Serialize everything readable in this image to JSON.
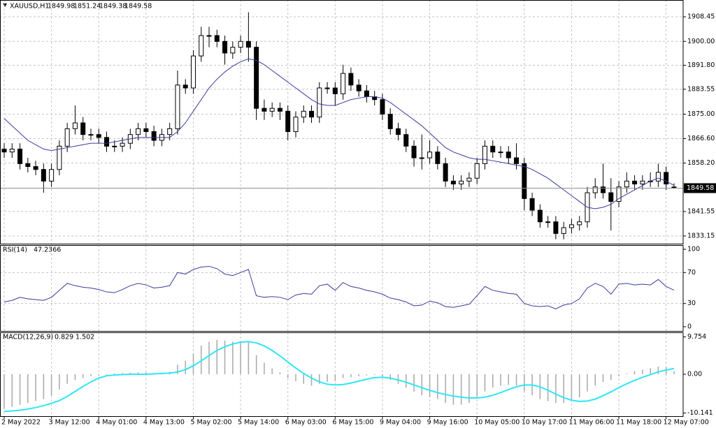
{
  "chart_data": [
    {
      "type": "candlestick",
      "title": "XAUUSD,H1",
      "open": [
        1863,
        1862,
        1863,
        1858,
        1857,
        1856,
        1852,
        1856,
        1864,
        1870,
        1872,
        1868,
        1868,
        1867,
        1864,
        1864,
        1865,
        1868,
        1870,
        1869,
        1866,
        1868,
        1870,
        1885,
        1884,
        1895,
        1902,
        1902,
        1900,
        1896,
        1898,
        1900,
        1898,
        1877,
        1876,
        1877,
        1876,
        1869,
        1874,
        1876,
        1874,
        1884,
        1884,
        1882,
        1889,
        1885,
        1883,
        1881,
        1880,
        1875,
        1870,
        1868,
        1864,
        1860,
        1860,
        1862,
        1858,
        1852,
        1851,
        1852,
        1853,
        1858,
        1864,
        1862,
        1862,
        1860,
        1858,
        1846,
        1842,
        1838,
        1838,
        1834,
        1836,
        1837,
        1838,
        1848,
        1850,
        1848,
        1845,
        1850,
        1852,
        1851,
        1852,
        1852,
        1855,
        1849.98
      ],
      "high": [
        1865,
        1865,
        1865,
        1860,
        1859,
        1858,
        1858,
        1866,
        1872,
        1878,
        1874,
        1870,
        1870,
        1869,
        1866,
        1867,
        1870,
        1872,
        1872,
        1871,
        1870,
        1872,
        1890,
        1887,
        1897,
        1905,
        1905,
        1904,
        1902,
        1900,
        1902,
        1910,
        1900,
        1880,
        1879,
        1879,
        1878,
        1876,
        1878,
        1878,
        1886,
        1886,
        1886,
        1892,
        1891,
        1887,
        1885,
        1883,
        1882,
        1877,
        1872,
        1870,
        1866,
        1868,
        1866,
        1864,
        1860,
        1854,
        1854,
        1855,
        1860,
        1866,
        1866,
        1864,
        1864,
        1865,
        1860,
        1848,
        1844,
        1840,
        1840,
        1838,
        1839,
        1840,
        1850,
        1853,
        1858,
        1853,
        1852,
        1855,
        1854,
        1854,
        1855,
        1858,
        1857,
        1851.24
      ],
      "low": [
        1860,
        1860,
        1856,
        1855,
        1854,
        1848,
        1850,
        1854,
        1862,
        1868,
        1866,
        1866,
        1865,
        1862,
        1862,
        1862,
        1863,
        1866,
        1867,
        1864,
        1864,
        1866,
        1868,
        1882,
        1882,
        1893,
        1898,
        1898,
        1892,
        1894,
        1896,
        1893,
        1873,
        1873,
        1874,
        1873,
        1866,
        1867,
        1872,
        1872,
        1872,
        1882,
        1878,
        1880,
        1883,
        1881,
        1879,
        1878,
        1873,
        1868,
        1866,
        1862,
        1857,
        1856,
        1858,
        1856,
        1850,
        1849,
        1849,
        1850,
        1851,
        1856,
        1860,
        1860,
        1858,
        1856,
        1842,
        1840,
        1836,
        1836,
        1832,
        1832,
        1834,
        1835,
        1836,
        1846,
        1846,
        1835,
        1843,
        1848,
        1849,
        1849,
        1850,
        1850,
        1849,
        1849.38
      ],
      "close": [
        1862,
        1863,
        1858,
        1857,
        1856,
        1852,
        1856,
        1864,
        1870,
        1872,
        1868,
        1868,
        1867,
        1864,
        1864,
        1865,
        1868,
        1870,
        1869,
        1866,
        1868,
        1870,
        1885,
        1884,
        1895,
        1902,
        1902,
        1900,
        1896,
        1898,
        1900,
        1898,
        1877,
        1876,
        1877,
        1876,
        1869,
        1874,
        1876,
        1874,
        1884,
        1884,
        1882,
        1889,
        1885,
        1883,
        1881,
        1880,
        1875,
        1870,
        1868,
        1864,
        1860,
        1860,
        1862,
        1858,
        1852,
        1851,
        1852,
        1853,
        1858,
        1864,
        1862,
        1862,
        1860,
        1858,
        1846,
        1842,
        1838,
        1838,
        1834,
        1836,
        1837,
        1838,
        1848,
        1850,
        1848,
        1845,
        1850,
        1852,
        1851,
        1852,
        1852,
        1855,
        1851,
        1849.58
      ],
      "ma_values": [
        1873.5,
        1871,
        1868.5,
        1866,
        1864.5,
        1863,
        1862.5,
        1863,
        1863.5,
        1864,
        1864.5,
        1865,
        1865,
        1865,
        1865.5,
        1866,
        1866.5,
        1867,
        1867,
        1867,
        1867,
        1867,
        1869,
        1872,
        1876,
        1880,
        1884,
        1887,
        1889.5,
        1891.5,
        1893,
        1894,
        1893.5,
        1892,
        1890,
        1888,
        1886,
        1884,
        1882,
        1880,
        1878.5,
        1878,
        1878,
        1879,
        1880,
        1880.5,
        1881,
        1881,
        1880.5,
        1879,
        1877,
        1875,
        1873,
        1871,
        1868.5,
        1866,
        1863.5,
        1862,
        1861,
        1860,
        1859.5,
        1859.5,
        1859,
        1858.5,
        1858,
        1857.5,
        1857,
        1856,
        1854.5,
        1853,
        1851,
        1849,
        1847,
        1845,
        1843,
        1842.5,
        1843,
        1844,
        1846,
        1847.5,
        1849,
        1850.5,
        1852,
        1853,
        1852,
        1850.5
      ],
      "ma_color": "#3a3aa0",
      "up_color": "#ffffff",
      "down_color": "#000000",
      "ylim": [
        1830.5,
        1914.22
      ],
      "yticks": [
        1908.45,
        {
          "value": 1900,
          "label": "1900.00"
        },
        {
          "value": 1891.8,
          "label": "1891.80"
        },
        1883.55,
        {
          "value": 1875,
          "label": "1875.00"
        },
        {
          "value": 1866.6,
          "label": "1866.60"
        },
        {
          "value": 1858.2,
          "label": "1858.20"
        },
        1841.55,
        1833.15
      ],
      "grid": true
    },
    {
      "type": "line",
      "title": "RSI(14)",
      "series": [
        {
          "color": "#3a3aa0",
          "values": [
            32,
            34,
            38,
            36,
            35,
            34,
            38,
            47,
            56,
            53,
            51,
            50,
            48,
            45,
            44,
            48,
            53,
            56,
            54,
            50,
            51,
            53,
            70,
            68,
            74,
            77,
            78,
            75,
            68,
            66,
            70,
            74,
            40,
            38,
            39,
            38,
            35,
            41,
            43,
            42,
            53,
            55,
            47,
            57,
            52,
            50,
            47,
            45,
            42,
            37,
            35,
            32,
            27,
            28,
            33,
            31,
            26,
            25,
            27,
            29,
            40,
            52,
            47,
            45,
            43,
            42,
            30,
            27,
            26,
            27,
            23,
            28,
            30,
            36,
            50,
            56,
            52,
            42,
            55,
            56,
            54,
            55,
            54,
            61,
            52,
            47.2366
          ]
        }
      ],
      "ylim": [
        -5.45,
        105.45
      ],
      "yticks": [
        100,
        70,
        30,
        0
      ],
      "levels": [
        70,
        30
      ],
      "grid": true
    },
    {
      "type": "macd",
      "title": "MACD(12,26,9)",
      "series": [
        {
          "color": "#a8a8a8",
          "values": [
            -9,
            -8.5,
            -8,
            -7.5,
            -7,
            -6.5,
            -5.5,
            -4,
            -2.5,
            -1.5,
            -1,
            -0.5,
            -0.3,
            -0.2,
            0.2,
            0.3,
            0.4,
            0.5,
            0.5,
            0.3,
            0.4,
            0.6,
            2.5,
            3.5,
            5.5,
            7.5,
            8.5,
            9,
            8.8,
            8.5,
            8.6,
            8.3,
            5,
            3,
            1.5,
            0.5,
            -1,
            -1.8,
            -2.5,
            -3,
            -2.5,
            -2,
            -1.8,
            -1,
            -0.8,
            -0.5,
            -0.3,
            -0.2,
            -0.6,
            -1.5,
            -2.5,
            -3.5,
            -4.5,
            -5.5,
            -6,
            -6.5,
            -7.5,
            -8,
            -8,
            -7.5,
            -6,
            -4.5,
            -3.5,
            -3,
            -2.8,
            -3,
            -4.5,
            -5.5,
            -6.5,
            -7,
            -7.5,
            -7.5,
            -7,
            -6,
            -4.5,
            -3,
            -2,
            -1.5,
            -0.5,
            0.2,
            0.8,
            1.2,
            1.6,
            2,
            1.8,
            0.829
          ]
        },
        {
          "color": "#2ee6f5",
          "values": [
            -9.7,
            -9.6,
            -9.4,
            -9.1,
            -8.7,
            -8.2,
            -7.6,
            -6.9,
            -5.8,
            -4.5,
            -3.2,
            -2,
            -1,
            -0.4,
            -0.2,
            -0.1,
            0,
            0,
            0,
            0.1,
            0.2,
            0.3,
            0.6,
            1.2,
            2.2,
            3.5,
            4.9,
            6.2,
            7.2,
            7.9,
            8.4,
            8.5,
            8.2,
            7.4,
            6.2,
            4.8,
            3.2,
            1.6,
            0.2,
            -1,
            -2,
            -2.6,
            -2.8,
            -2.7,
            -2.3,
            -1.8,
            -1.3,
            -0.9,
            -0.8,
            -1,
            -1.5,
            -2.1,
            -2.8,
            -3.5,
            -4.2,
            -4.8,
            -5.3,
            -5.7,
            -6,
            -6.2,
            -6.2,
            -6,
            -5.5,
            -4.8,
            -4,
            -3.3,
            -2.8,
            -2.8,
            -3.3,
            -4.2,
            -5.2,
            -6.1,
            -6.8,
            -7.1,
            -7,
            -6.5,
            -5.6,
            -4.6,
            -3.5,
            -2.5,
            -1.6,
            -0.8,
            -0.1,
            0.6,
            1.1,
            1.502
          ]
        }
      ],
      "ylim": [
        -10.95,
        10.95
      ],
      "yticks": [
        9.754,
        {
          "value": 0,
          "label": "0.00"
        },
        -10.141
      ],
      "xticks": [
        {
          "value": 0,
          "label": "2 May 2022"
        },
        {
          "value": 6,
          "label": "3 May 12:00"
        },
        {
          "value": 12,
          "label": "4 May 01:00"
        },
        {
          "value": 18,
          "label": "4 May 13:00"
        },
        {
          "value": 24,
          "label": "5 May 02:00"
        },
        {
          "value": 30,
          "label": "5 May 14:00"
        },
        {
          "value": 36,
          "label": "6 May 03:00"
        },
        {
          "value": 42,
          "label": "6 May 15:00"
        },
        {
          "value": 48,
          "label": "9 May 04:00"
        },
        {
          "value": 54,
          "label": "9 May 16:00"
        },
        {
          "value": 60,
          "label": "10 May 05:00"
        },
        {
          "value": 66,
          "label": "10 May 17:00"
        },
        {
          "value": 72,
          "label": "11 May 06:00"
        },
        {
          "value": 78,
          "label": "11 May 18:00"
        },
        {
          "value": 84,
          "label": "12 May 07:00"
        }
      ],
      "grid": true
    }
  ]
}
